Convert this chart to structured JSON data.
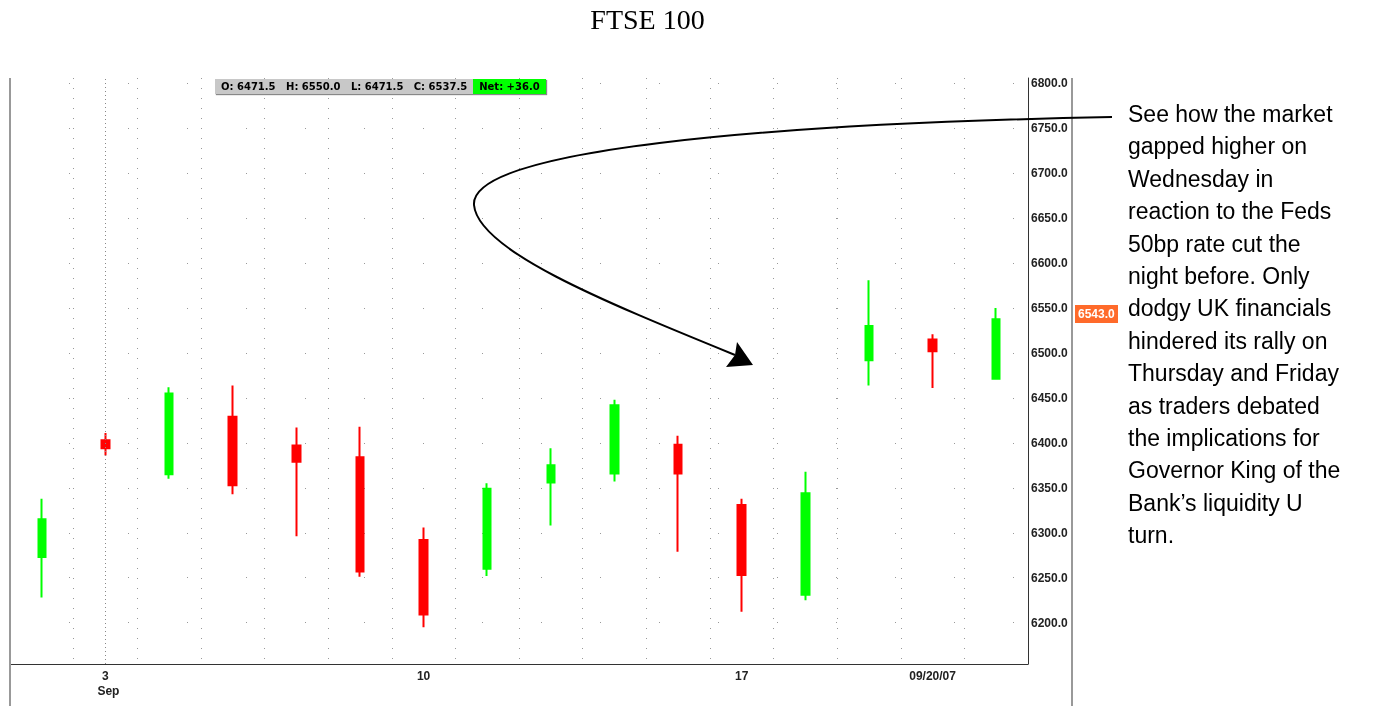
{
  "chart_data": {
    "type": "candlestick",
    "title": "FTSE 100",
    "categories": [
      null,
      "3",
      null,
      null,
      null,
      null,
      "10",
      null,
      null,
      null,
      null,
      "17",
      null,
      null,
      "09/20/07",
      null
    ],
    "ohlc": [
      [
        6273,
        6338,
        6228,
        6315
      ],
      [
        6403,
        6411,
        6386,
        6394
      ],
      [
        6365,
        6462,
        6360,
        6455
      ],
      [
        6429,
        6464,
        6343,
        6353
      ],
      [
        6397,
        6417,
        6296,
        6379
      ],
      [
        6384,
        6418,
        6251,
        6257
      ],
      [
        6292,
        6306,
        6195,
        6209
      ],
      [
        6260,
        6355,
        6252,
        6349
      ],
      [
        6356,
        6394,
        6308,
        6375
      ],
      [
        6366,
        6448,
        6357,
        6442
      ],
      [
        6398,
        6408,
        6279,
        6366
      ],
      [
        6331,
        6338,
        6212,
        6253
      ],
      [
        6231,
        6368,
        6225,
        6344
      ],
      [
        6492,
        6581,
        6464,
        6530
      ],
      [
        6515,
        6521,
        6461,
        6502
      ],
      [
        6471.5,
        6550,
        6471.5,
        6537.5
      ]
    ],
    "colors": [
      "#00ff00",
      "#ff0000",
      "#00ff00",
      "#ff0000",
      "#ff0000",
      "#ff0000",
      "#ff0000",
      "#00ff00",
      "#00ff00",
      "#00ff00",
      "#ff0000",
      "#ff0000",
      "#00ff00",
      "#00ff00",
      "#ff0000",
      "#00ff00"
    ],
    "ylim": [
      6154,
      6806
    ],
    "yticks": [
      {
        "value": 6200,
        "label": "6200.0"
      },
      {
        "value": 6250,
        "label": "6250.0"
      },
      {
        "value": 6300,
        "label": "6300.0"
      },
      {
        "value": 6350,
        "label": "6350.0"
      },
      {
        "value": 6400,
        "label": "6400.0"
      },
      {
        "value": 6450,
        "label": "6450.0"
      },
      {
        "value": 6500,
        "label": "6500.0"
      },
      {
        "value": 6550,
        "label": "6550.0"
      },
      {
        "value": 6600,
        "label": "6600.0"
      },
      {
        "value": 6650,
        "label": "6650.0"
      },
      {
        "value": 6700,
        "label": "6700.0"
      },
      {
        "value": 6750,
        "label": "6750.0"
      },
      {
        "value": 6800,
        "label": "6800.0"
      }
    ],
    "grid": true,
    "ref_lines": [
      {
        "axis": "x",
        "value": "3",
        "line_style": "dotted",
        "color": "#888888"
      }
    ],
    "annotations": [
      "O: 6471.5   H: 6550.0   L: 6471.5   C: 6537.5",
      "Net: +36.0",
      "Sep",
      "6543.0",
      "See how the market gapped higher on Wednesday in reaction to the Feds 50bp rate cut the night before. Only dodgy UK financials hindered its rally on Thursday and Friday as traders debated the implications for Governor King of the Bank’s liquidity U turn."
    ]
  }
}
